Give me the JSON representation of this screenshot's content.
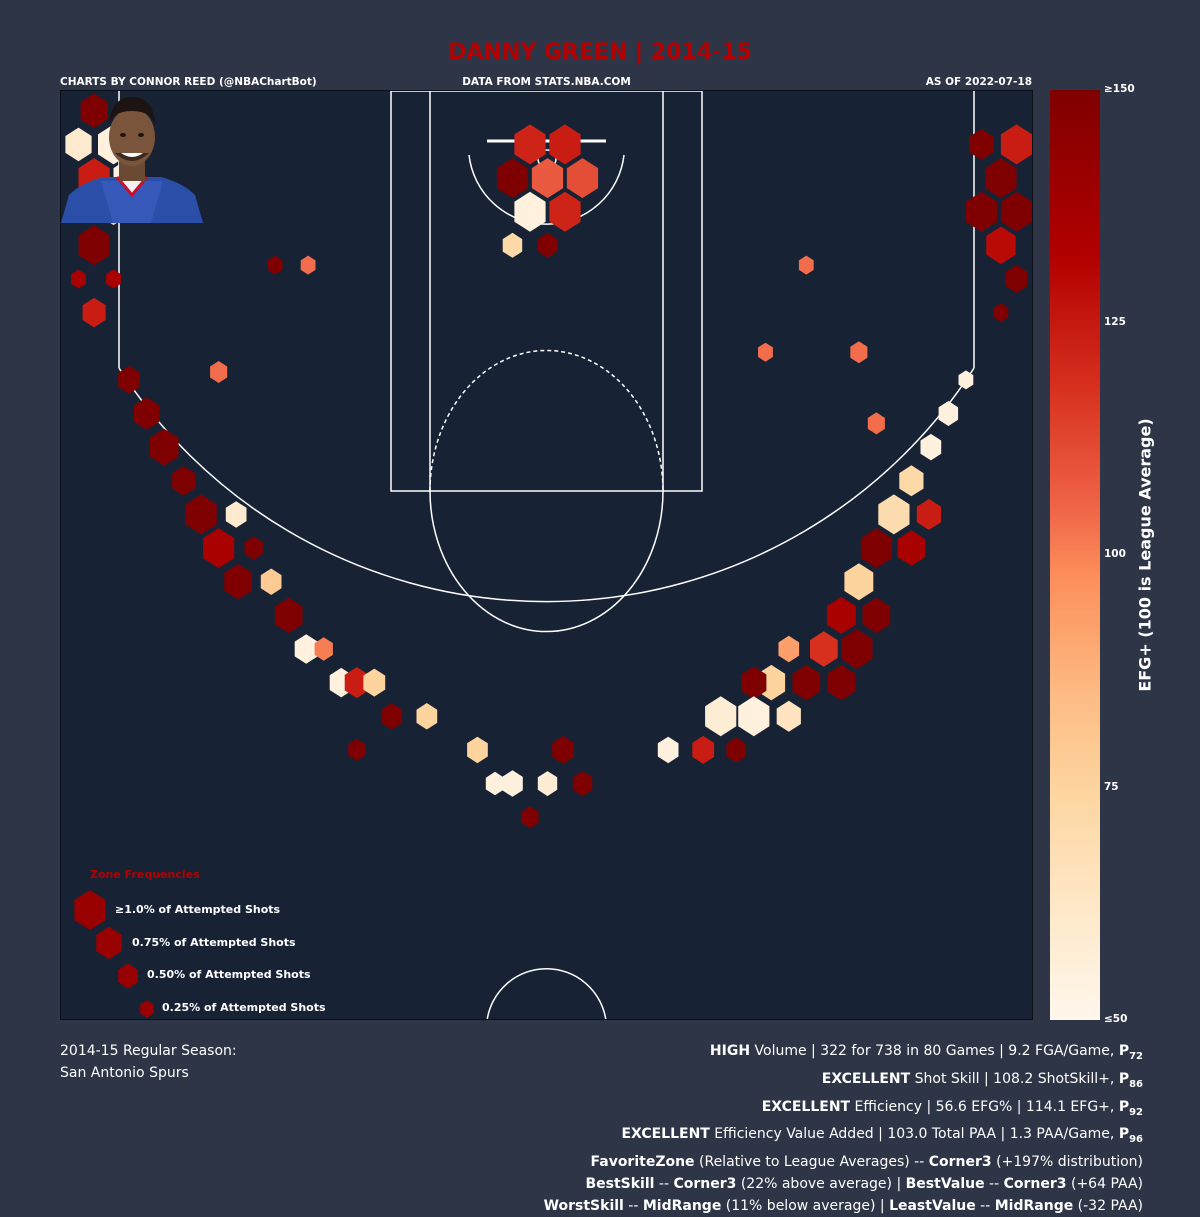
{
  "header": {
    "title": "DANNY GREEN | 2014-15",
    "credit": "CHARTS BY CONNOR REED (@NBAChartBot)",
    "source": "DATA FROM STATS.NBA.COM",
    "as_of": "AS OF 2022-07-18"
  },
  "colorbar": {
    "label": "EFG+ (100 is League Average)",
    "ticks": [
      "≥150",
      "125",
      "100",
      "75",
      "≤50"
    ],
    "colors": [
      "#7f0000",
      "#b30000",
      "#d7301f",
      "#ef6548",
      "#fc8d59",
      "#fdbb84",
      "#fdd49e",
      "#fee8c8",
      "#fff7ec"
    ]
  },
  "legend": {
    "title": "Zone Frequencies",
    "items": [
      {
        "label": "≥1.0% of Attempted Shots",
        "freq": 1.0
      },
      {
        "label": "0.75% of Attempted Shots",
        "freq": 0.75
      },
      {
        "label": "0.50% of Attempted Shots",
        "freq": 0.5
      },
      {
        "label": "0.25% of Attempted Shots",
        "freq": 0.25
      }
    ]
  },
  "footer": {
    "season_line1": "2014-15 Regular Season:",
    "season_line2": "San Antonio Spurs",
    "lines": [
      [
        {
          "b": "HIGH"
        },
        {
          "t": " Volume | 322 for 738 in 80 Games | 9.2 FGA/Game, "
        },
        {
          "b": "P"
        },
        {
          "sub": "72"
        }
      ],
      [
        {
          "b": "EXCELLENT"
        },
        {
          "t": " Shot Skill | 108.2 ShotSkill+, "
        },
        {
          "b": "P"
        },
        {
          "sub": "86"
        }
      ],
      [
        {
          "b": "EXCELLENT"
        },
        {
          "t": " Efficiency | 56.6 EFG% | 114.1 EFG+, "
        },
        {
          "b": "P"
        },
        {
          "sub": "92"
        }
      ],
      [
        {
          "b": "EXCELLENT"
        },
        {
          "t": " Efficiency Value Added | 103.0 Total PAA | 1.3 PAA/Game, "
        },
        {
          "b": "P"
        },
        {
          "sub": "96"
        }
      ],
      [
        {
          "b": "FavoriteZone"
        },
        {
          "t": " (Relative to League Averages) -- "
        },
        {
          "b": "Corner3"
        },
        {
          "t": " (+197% distribution)"
        }
      ],
      [
        {
          "b": "BestSkill"
        },
        {
          "t": " -- "
        },
        {
          "b": "Corner3"
        },
        {
          "t": " (22% above average) | "
        },
        {
          "b": "BestValue"
        },
        {
          "t": " -- "
        },
        {
          "b": "Corner3"
        },
        {
          "t": " (+64 PAA)"
        }
      ],
      [
        {
          "b": "WorstSkill"
        },
        {
          "t": " -- "
        },
        {
          "b": "MidRange"
        },
        {
          "t": " (11% below average) | "
        },
        {
          "b": "LeastValue"
        },
        {
          "t": " -- "
        },
        {
          "b": "MidRange"
        },
        {
          "t": " (-32 PAA)"
        }
      ]
    ]
  },
  "chart_data": {
    "type": "hexbin",
    "title": "DANNY GREEN | 2014-15",
    "color_metric": "EFG+ (100 is League Average)",
    "color_range": [
      50,
      150
    ],
    "size_metric": "percent of attempted shots",
    "units": "court feet: x from -25 to 25 (basket at 0), y from 0 (baseline) to 47",
    "hexes": [
      {
        "x": -23.3,
        "y": 46.0,
        "freq": 0.82,
        "efg": 150
      },
      {
        "x": -24.1,
        "y": 44.3,
        "freq": 0.79,
        "efg": 60
      },
      {
        "x": -22.3,
        "y": 44.3,
        "freq": 1.0,
        "efg": 55
      },
      {
        "x": -23.3,
        "y": 42.6,
        "freq": 1.0,
        "efg": 130
      },
      {
        "x": -21.5,
        "y": 42.6,
        "freq": 1.0,
        "efg": 55
      },
      {
        "x": -22.3,
        "y": 40.9,
        "freq": 0.56,
        "efg": 80
      },
      {
        "x": -23.3,
        "y": 39.2,
        "freq": 1.0,
        "efg": 150
      },
      {
        "x": -24.1,
        "y": 37.5,
        "freq": 0.3,
        "efg": 140
      },
      {
        "x": -22.3,
        "y": 37.5,
        "freq": 0.3,
        "efg": 140
      },
      {
        "x": -23.3,
        "y": 35.8,
        "freq": 0.65,
        "efg": 130
      },
      {
        "x": 22.3,
        "y": 44.3,
        "freq": 0.7,
        "efg": 150
      },
      {
        "x": 24.1,
        "y": 44.3,
        "freq": 1.0,
        "efg": 130
      },
      {
        "x": 23.3,
        "y": 42.6,
        "freq": 1.0,
        "efg": 150
      },
      {
        "x": 22.3,
        "y": 40.9,
        "freq": 1.0,
        "efg": 150
      },
      {
        "x": 24.1,
        "y": 40.9,
        "freq": 1.0,
        "efg": 150
      },
      {
        "x": 23.3,
        "y": 39.2,
        "freq": 0.92,
        "efg": 135
      },
      {
        "x": 24.1,
        "y": 37.5,
        "freq": 0.6,
        "efg": 150
      },
      {
        "x": 23.3,
        "y": 35.8,
        "freq": 0.3,
        "efg": 150
      },
      {
        "x": -0.9,
        "y": 44.3,
        "freq": 1.0,
        "efg": 128
      },
      {
        "x": 0.9,
        "y": 44.3,
        "freq": 1.0,
        "efg": 130
      },
      {
        "x": -1.8,
        "y": 42.6,
        "freq": 1.0,
        "efg": 150
      },
      {
        "x": 0.0,
        "y": 42.6,
        "freq": 1.0,
        "efg": 115
      },
      {
        "x": 1.8,
        "y": 42.6,
        "freq": 1.0,
        "efg": 118
      },
      {
        "x": -0.9,
        "y": 40.9,
        "freq": 1.0,
        "efg": 55
      },
      {
        "x": 0.9,
        "y": 40.9,
        "freq": 1.0,
        "efg": 128
      },
      {
        "x": -1.8,
        "y": 39.2,
        "freq": 0.5,
        "efg": 72
      },
      {
        "x": 0.0,
        "y": 39.2,
        "freq": 0.5,
        "efg": 150
      },
      {
        "x": -21.5,
        "y": 32.4,
        "freq": 0.6,
        "efg": 150
      },
      {
        "x": -20.6,
        "y": 30.7,
        "freq": 0.75,
        "efg": 150
      },
      {
        "x": -19.7,
        "y": 29.0,
        "freq": 0.9,
        "efg": 150
      },
      {
        "x": -18.7,
        "y": 27.3,
        "freq": 0.65,
        "efg": 150
      },
      {
        "x": -17.8,
        "y": 25.6,
        "freq": 1.0,
        "efg": 150
      },
      {
        "x": -16.0,
        "y": 25.6,
        "freq": 0.55,
        "efg": 60
      },
      {
        "x": -16.9,
        "y": 23.9,
        "freq": 1.0,
        "efg": 140
      },
      {
        "x": -15.1,
        "y": 23.9,
        "freq": 0.45,
        "efg": 150
      },
      {
        "x": -15.9,
        "y": 22.2,
        "freq": 0.85,
        "efg": 150
      },
      {
        "x": -14.2,
        "y": 22.2,
        "freq": 0.55,
        "efg": 80
      },
      {
        "x": -13.3,
        "y": 20.5,
        "freq": 0.85,
        "efg": 150
      },
      {
        "x": -12.4,
        "y": 18.8,
        "freq": 0.65,
        "efg": 55
      },
      {
        "x": -11.5,
        "y": 18.8,
        "freq": 0.45,
        "efg": 105
      },
      {
        "x": -10.6,
        "y": 17.1,
        "freq": 0.65,
        "efg": 55
      },
      {
        "x": -9.8,
        "y": 17.1,
        "freq": 0.7,
        "efg": 130
      },
      {
        "x": -8.9,
        "y": 17.1,
        "freq": 0.6,
        "efg": 75
      },
      {
        "x": -8.0,
        "y": 15.4,
        "freq": 0.55,
        "efg": 150
      },
      {
        "x": -6.2,
        "y": 15.4,
        "freq": 0.55,
        "efg": 75
      },
      {
        "x": 21.5,
        "y": 32.4,
        "freq": 0.3,
        "efg": 55
      },
      {
        "x": 20.6,
        "y": 30.7,
        "freq": 0.5,
        "efg": 55
      },
      {
        "x": 19.7,
        "y": 29.0,
        "freq": 0.55,
        "efg": 55
      },
      {
        "x": 18.7,
        "y": 27.3,
        "freq": 0.7,
        "efg": 72
      },
      {
        "x": 19.6,
        "y": 25.6,
        "freq": 0.7,
        "efg": 130
      },
      {
        "x": 17.8,
        "y": 25.6,
        "freq": 1.0,
        "efg": 70
      },
      {
        "x": 16.9,
        "y": 23.9,
        "freq": 1.0,
        "efg": 150
      },
      {
        "x": 18.7,
        "y": 23.9,
        "freq": 0.85,
        "efg": 140
      },
      {
        "x": 16.0,
        "y": 22.2,
        "freq": 0.9,
        "efg": 75
      },
      {
        "x": 15.1,
        "y": 20.5,
        "freq": 0.9,
        "efg": 140
      },
      {
        "x": 16.9,
        "y": 20.5,
        "freq": 0.85,
        "efg": 150
      },
      {
        "x": 14.2,
        "y": 18.8,
        "freq": 0.85,
        "efg": 125
      },
      {
        "x": 15.9,
        "y": 18.8,
        "freq": 1.0,
        "efg": 150
      },
      {
        "x": 12.4,
        "y": 18.8,
        "freq": 0.55,
        "efg": 95
      },
      {
        "x": 13.3,
        "y": 17.1,
        "freq": 0.85,
        "efg": 150
      },
      {
        "x": 11.5,
        "y": 17.1,
        "freq": 0.85,
        "efg": 75
      },
      {
        "x": 15.1,
        "y": 17.1,
        "freq": 0.85,
        "efg": 150
      },
      {
        "x": 10.6,
        "y": 17.1,
        "freq": 0.75,
        "efg": 150
      },
      {
        "x": 12.4,
        "y": 15.4,
        "freq": 0.7,
        "efg": 65
      },
      {
        "x": 10.6,
        "y": 15.4,
        "freq": 1.0,
        "efg": 55
      },
      {
        "x": 8.9,
        "y": 15.4,
        "freq": 1.0,
        "efg": 58
      },
      {
        "x": 9.7,
        "y": 13.7,
        "freq": 0.5,
        "efg": 150
      },
      {
        "x": 8.0,
        "y": 13.7,
        "freq": 0.6,
        "efg": 130
      },
      {
        "x": 6.2,
        "y": 13.7,
        "freq": 0.55,
        "efg": 55
      },
      {
        "x": 0.8,
        "y": 13.7,
        "freq": 0.6,
        "efg": 150
      },
      {
        "x": -3.6,
        "y": 13.7,
        "freq": 0.55,
        "efg": 75
      },
      {
        "x": -9.8,
        "y": 13.7,
        "freq": 0.4,
        "efg": 150
      },
      {
        "x": -2.7,
        "y": 12.0,
        "freq": 0.45,
        "efg": 55
      },
      {
        "x": -1.8,
        "y": 12.0,
        "freq": 0.55,
        "efg": 55
      },
      {
        "x": 0.0,
        "y": 12.0,
        "freq": 0.5,
        "efg": 58
      },
      {
        "x": 1.8,
        "y": 12.0,
        "freq": 0.5,
        "efg": 150
      },
      {
        "x": -0.9,
        "y": 10.3,
        "freq": 0.4,
        "efg": 150
      },
      {
        "x": 16.0,
        "y": 33.8,
        "freq": 0.4,
        "efg": 110
      },
      {
        "x": 16.9,
        "y": 30.2,
        "freq": 0.4,
        "efg": 110
      },
      {
        "x": 11.2,
        "y": 33.8,
        "freq": 0.3,
        "efg": 110
      },
      {
        "x": -16.9,
        "y": 32.8,
        "freq": 0.4,
        "efg": 110
      },
      {
        "x": -12.3,
        "y": 38.2,
        "freq": 0.3,
        "efg": 110
      },
      {
        "x": -14.0,
        "y": 38.2,
        "freq": 0.3,
        "efg": 150
      },
      {
        "x": 13.3,
        "y": 38.2,
        "freq": 0.3,
        "efg": 110
      }
    ]
  }
}
